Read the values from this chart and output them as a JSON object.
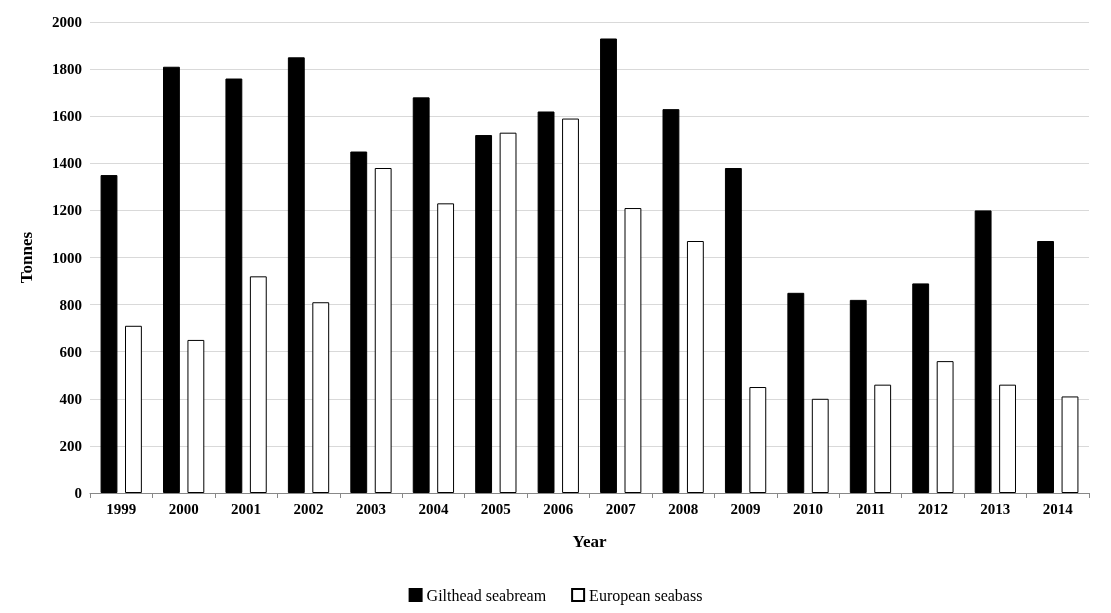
{
  "chart_data": {
    "type": "bar",
    "xlabel": "Year",
    "ylabel": "Tonnes",
    "categories": [
      "1999",
      "2000",
      "2001",
      "2002",
      "2003",
      "2004",
      "2005",
      "2006",
      "2007",
      "2008",
      "2009",
      "2010",
      "2011",
      "2012",
      "2013",
      "2014"
    ],
    "series": [
      {
        "name": "Gilthead seabream",
        "color": "#000000",
        "values": [
          1350,
          1810,
          1760,
          1850,
          1450,
          1680,
          1520,
          1620,
          1930,
          1630,
          1380,
          850,
          820,
          890,
          1200,
          1070
        ]
      },
      {
        "name": "European seabass",
        "color": "#ffffff",
        "values": [
          710,
          650,
          920,
          810,
          1380,
          1230,
          1530,
          1590,
          1210,
          1070,
          450,
          400,
          460,
          560,
          460,
          410
        ]
      }
    ],
    "ylim": [
      0,
      2000
    ],
    "yticks": [
      0,
      200,
      400,
      600,
      800,
      1000,
      1200,
      1400,
      1600,
      1800,
      2000
    ],
    "grid": "y",
    "legend": "bottom"
  }
}
